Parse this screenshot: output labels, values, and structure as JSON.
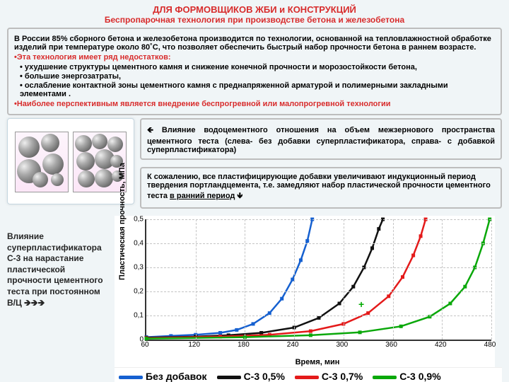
{
  "title1": "ДЛЯ ФОРМОВЩИКОВ ЖБИ и КОНСТРУКЦИЙ",
  "title2": "Беспропарочная технология при производстве бетона и железобетона",
  "box1": {
    "para": "В России 85% сборного бетона и железобетона производится по технологии, основанной на тепловлажностной обработке изделий при температуре около 80˚С, что позволяет обеспечить быстрый набор прочности бетона в раннем возрасте.",
    "red_intro": "Эта технология имеет ряд недостатков:",
    "items": [
      "ухудшение структуры цементного камня и снижение конечной прочности и морозостойкости бетона,",
      "большие энергозатраты,",
      "ослабление контактной зоны цементного камня с преднапряженной арматурой и полимерными закладными элементами ."
    ],
    "red_outro": "Наиболее перспективным  является внедрение беспрогревной или малопрогревной технологии"
  },
  "mid": {
    "caption": "🡸 Влияние водоцементного отношения на объем межзернового пространства цементного теста (слева- без добавки суперпластификатора, справа- с добавкой суперпластификатора)",
    "para2a": "К сожалению, все пластифицирующие добавки увеличивают индукционный период твердения портландцемента, т.е. замедляют набор пластической прочности цементного теста ",
    "para2b": "в ранний период",
    "para2c": " 🡻"
  },
  "sidetext": "Влияние суперпластификатора С-3 на нарастание пластической прочности цементного теста при постоянном В/Ц    🡺🡺🡺",
  "chart": {
    "ylabel": "Пластическая прочность, МПа",
    "xlabel": "Время, мин",
    "ymax": 0.5,
    "yticks": [
      0,
      0.1,
      0.2,
      0.3,
      0.4,
      0.5
    ],
    "xmin": 60,
    "xmax": 480,
    "xticks": [
      60,
      120,
      180,
      240,
      300,
      360,
      420,
      480
    ],
    "series": [
      {
        "name": "Без добавок",
        "color": "#1560d0",
        "pts": [
          [
            60,
            0.01
          ],
          [
            90,
            0.015
          ],
          [
            120,
            0.02
          ],
          [
            150,
            0.028
          ],
          [
            170,
            0.04
          ],
          [
            190,
            0.065
          ],
          [
            210,
            0.11
          ],
          [
            225,
            0.17
          ],
          [
            238,
            0.25
          ],
          [
            248,
            0.33
          ],
          [
            256,
            0.41
          ],
          [
            262,
            0.5
          ]
        ]
      },
      {
        "name": "С-3  0,5%",
        "color": "#111111",
        "pts": [
          [
            60,
            0.008
          ],
          [
            120,
            0.012
          ],
          [
            160,
            0.018
          ],
          [
            200,
            0.028
          ],
          [
            240,
            0.05
          ],
          [
            270,
            0.09
          ],
          [
            295,
            0.15
          ],
          [
            312,
            0.22
          ],
          [
            325,
            0.3
          ],
          [
            335,
            0.38
          ],
          [
            343,
            0.46
          ],
          [
            348,
            0.5
          ]
        ]
      },
      {
        "name": "С-3  0,7%",
        "color": "#e41a1a",
        "pts": [
          [
            60,
            0.006
          ],
          [
            150,
            0.012
          ],
          [
            210,
            0.02
          ],
          [
            260,
            0.035
          ],
          [
            300,
            0.065
          ],
          [
            330,
            0.11
          ],
          [
            355,
            0.18
          ],
          [
            372,
            0.26
          ],
          [
            385,
            0.35
          ],
          [
            394,
            0.43
          ],
          [
            400,
            0.5
          ]
        ]
      },
      {
        "name": "С-3  0,9%",
        "color": "#0aa80a",
        "pts": [
          [
            60,
            0.004
          ],
          [
            180,
            0.01
          ],
          [
            260,
            0.018
          ],
          [
            320,
            0.03
          ],
          [
            370,
            0.055
          ],
          [
            405,
            0.095
          ],
          [
            430,
            0.15
          ],
          [
            448,
            0.22
          ],
          [
            460,
            0.3
          ],
          [
            470,
            0.4
          ],
          [
            478,
            0.5
          ]
        ]
      }
    ],
    "legend": [
      "Без добавок",
      "С-3  0,5%",
      "С-3  0,7%",
      "С-3  0,9%"
    ],
    "legend_colors": [
      "#1560d0",
      "#111111",
      "#e41a1a",
      "#0aa80a"
    ]
  }
}
